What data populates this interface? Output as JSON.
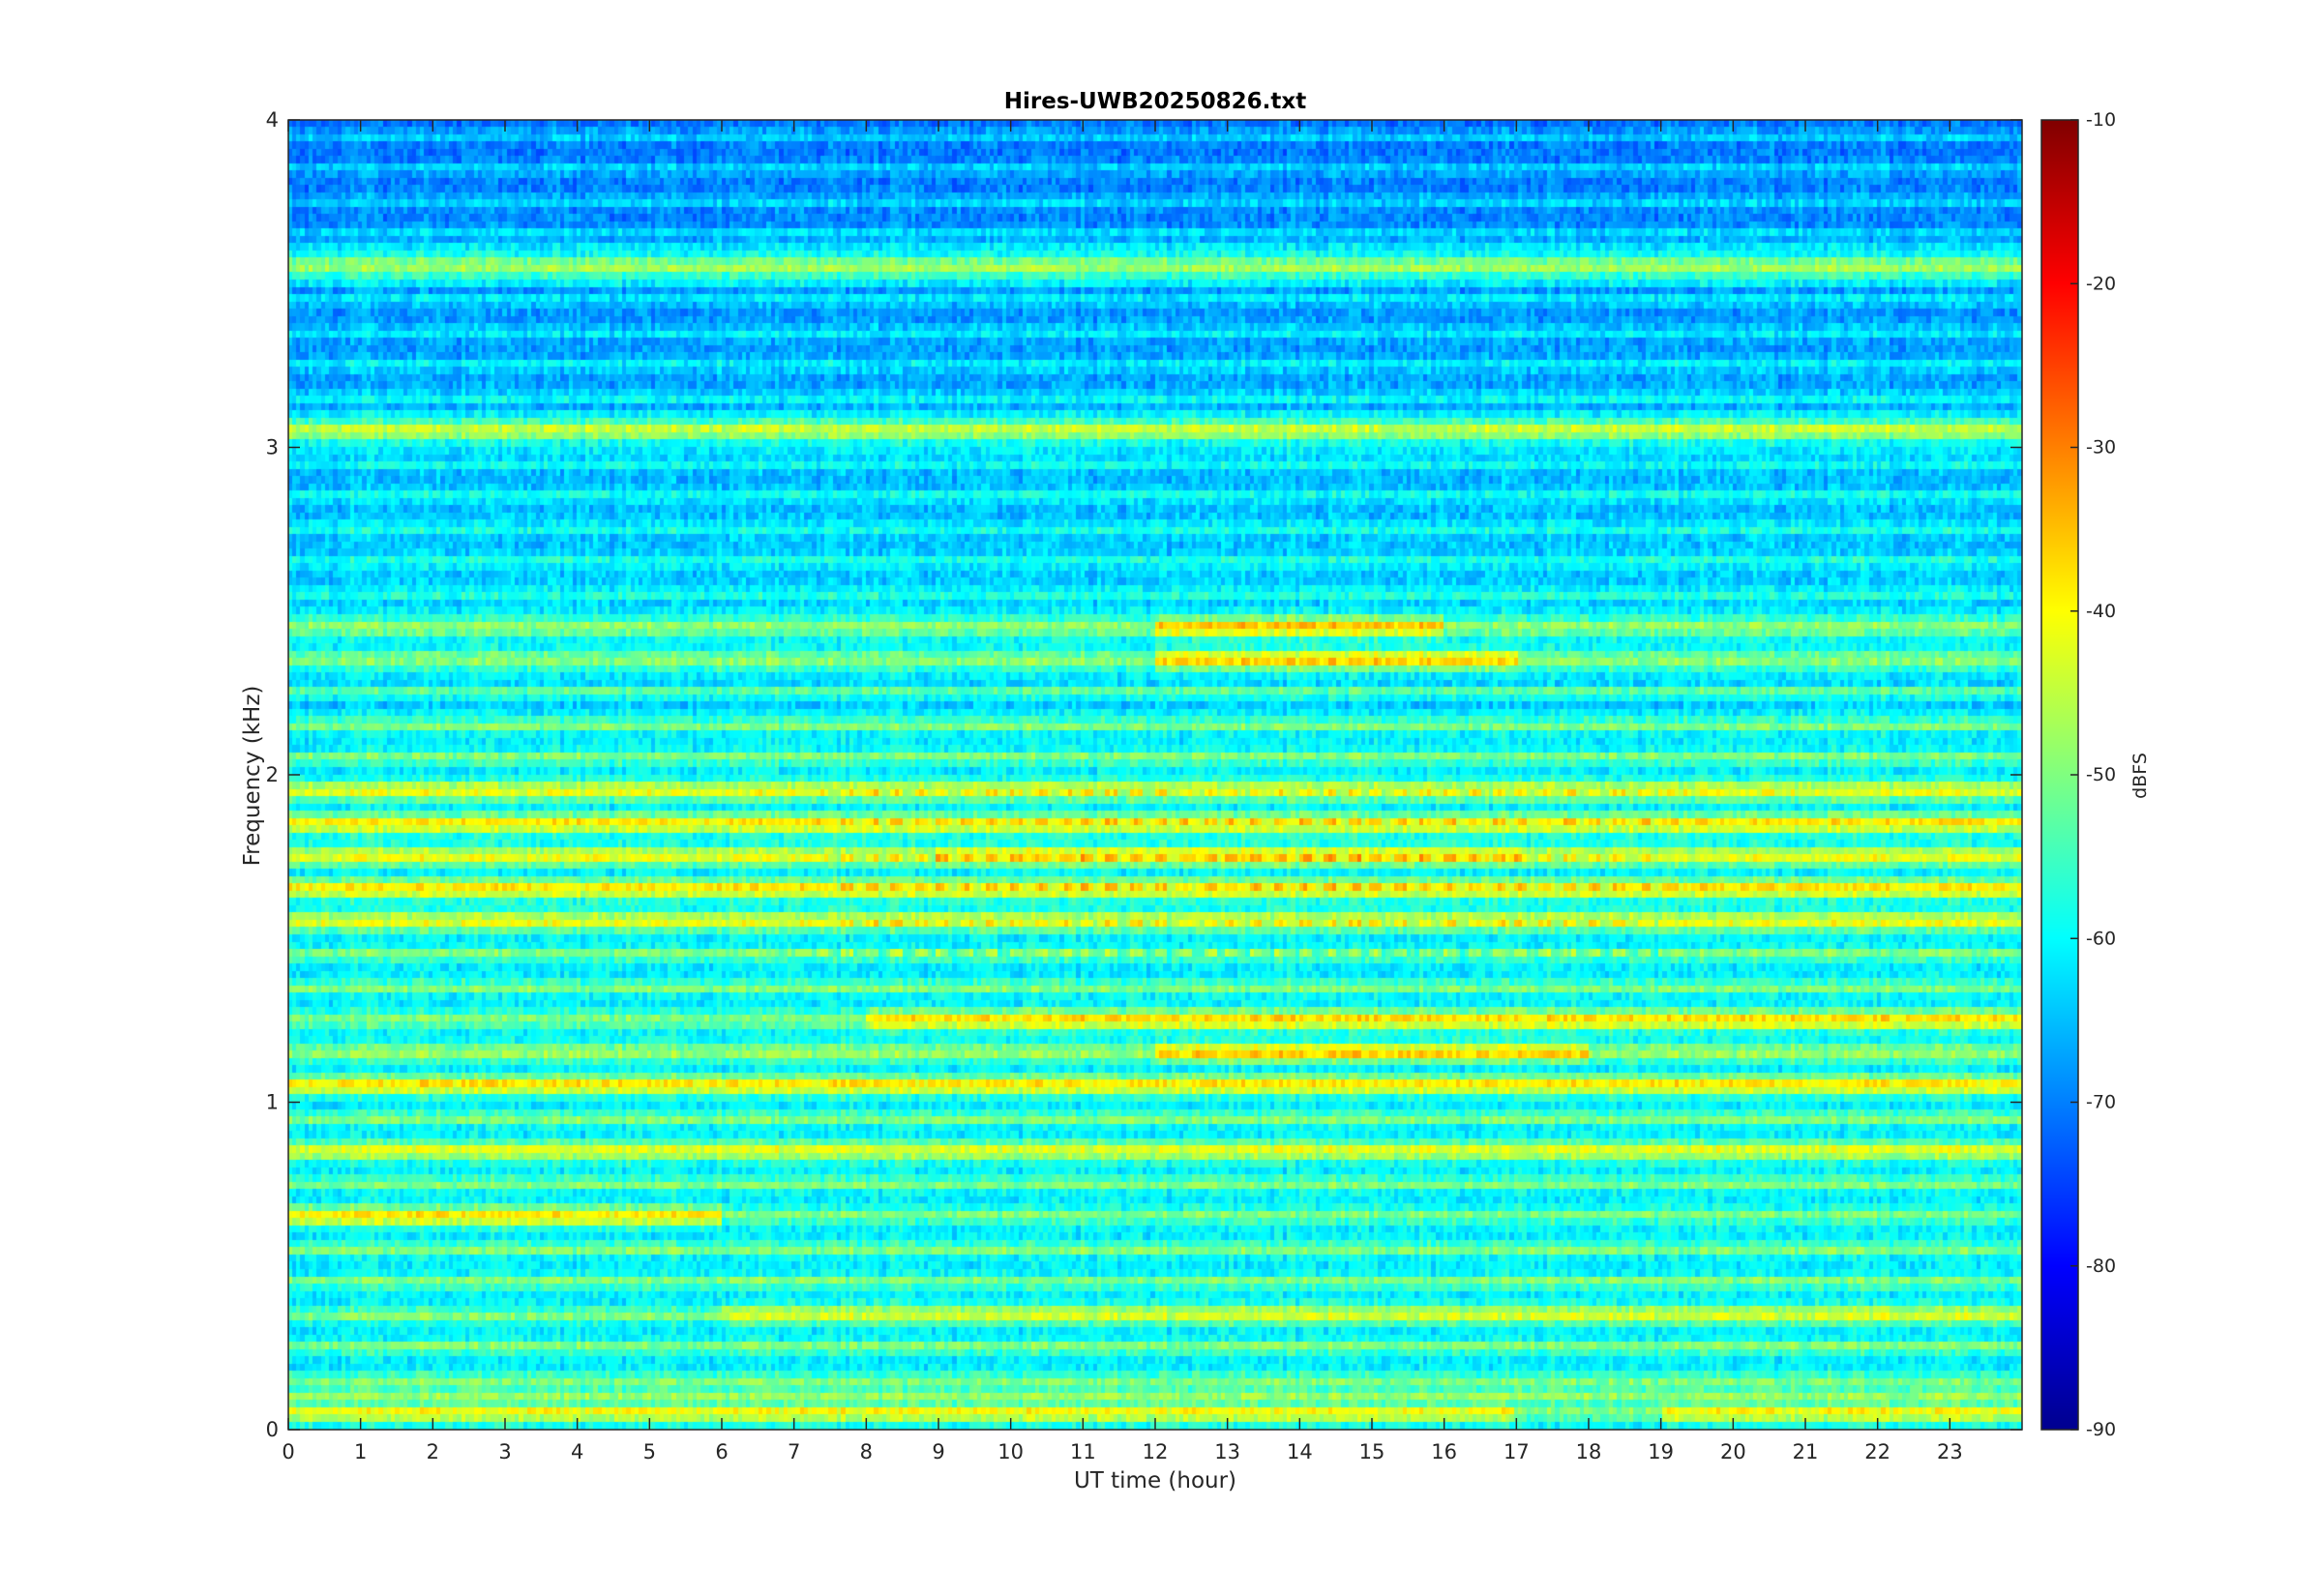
{
  "chart_data": {
    "type": "heatmap",
    "title": "Hires-UWB20250826.txt",
    "xlabel": "UT time (hour)",
    "ylabel": "Frequency (kHz)",
    "xlim": [
      0,
      24
    ],
    "ylim": [
      0,
      4
    ],
    "x_ticks": [
      "0",
      "1",
      "2",
      "3",
      "4",
      "5",
      "6",
      "7",
      "8",
      "9",
      "10",
      "11",
      "12",
      "13",
      "14",
      "15",
      "16",
      "17",
      "18",
      "19",
      "20",
      "21",
      "22",
      "23"
    ],
    "y_ticks": [
      "0",
      "1",
      "2",
      "3",
      "4"
    ],
    "colorbar": {
      "label": "dBFS",
      "range": [
        -90,
        -10
      ],
      "ticks": [
        "-90",
        "-80",
        "-70",
        "-60",
        "-50",
        "-40",
        "-30",
        "-20",
        "-10"
      ],
      "colormap": "jet"
    },
    "noise_floor_dbfs": -62,
    "bands": [
      {
        "freq_khz": 0.05,
        "level_dbfs": -40,
        "extent": "full day, broken around 17-19 h"
      },
      {
        "freq_khz": 0.1,
        "level_dbfs": -48,
        "extent": "full day"
      },
      {
        "freq_khz": 0.35,
        "level_dbfs": -43,
        "extent": "6-24 h"
      },
      {
        "freq_khz": 0.65,
        "level_dbfs": -38,
        "extent": "0-6 h"
      },
      {
        "freq_khz": 0.85,
        "level_dbfs": -42,
        "extent": "full day"
      },
      {
        "freq_khz": 1.05,
        "level_dbfs": -38,
        "extent": "full day"
      },
      {
        "freq_khz": 1.15,
        "level_dbfs": -36,
        "extent": "12-18 h"
      },
      {
        "freq_khz": 1.25,
        "level_dbfs": -37,
        "extent": "8-24 h"
      },
      {
        "freq_khz": 1.55,
        "level_dbfs": -41,
        "extent": "full day, periodic 7.3-19 h"
      },
      {
        "freq_khz": 1.65,
        "level_dbfs": -38,
        "extent": "full day, periodic 7.3-19 h"
      },
      {
        "freq_khz": 1.75,
        "level_dbfs": -36,
        "extent": "full day, strongest 9-17 h"
      },
      {
        "freq_khz": 1.85,
        "level_dbfs": -38,
        "extent": "full day"
      },
      {
        "freq_khz": 1.95,
        "level_dbfs": -41,
        "extent": "full day"
      },
      {
        "freq_khz": 2.35,
        "level_dbfs": -36,
        "extent": "12-17 h"
      },
      {
        "freq_khz": 2.45,
        "level_dbfs": -35,
        "extent": "12-16 h"
      },
      {
        "freq_khz": 3.05,
        "level_dbfs": -44,
        "extent": "full day"
      },
      {
        "freq_khz": 3.55,
        "level_dbfs": -47,
        "extent": "full day"
      }
    ]
  }
}
